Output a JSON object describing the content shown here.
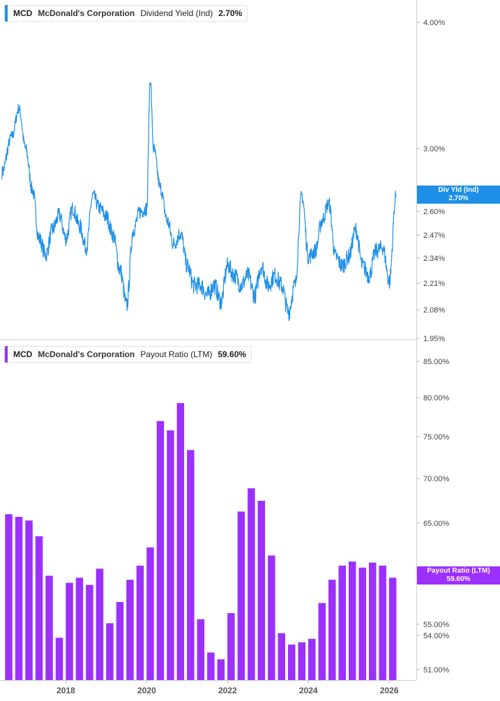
{
  "top_panel": {
    "legend": {
      "ticker": "MCD",
      "company": "McDonald's Corporation",
      "metric": "Dividend Yield (Ind)",
      "value": "2.70%",
      "color": "#1e90e8"
    },
    "tag": {
      "label": "Div Yld (Ind)",
      "value": "2.70%",
      "color": "#1e90e8"
    }
  },
  "bottom_panel": {
    "legend": {
      "ticker": "MCD",
      "company": "McDonald's Corporation",
      "metric": "Payout Ratio (LTM)",
      "value": "59.60%",
      "color": "#9b30ff"
    },
    "tag": {
      "label": "Payout Ratio (LTM)",
      "value": "59.60%",
      "color": "#9b30ff"
    }
  },
  "chart_data": [
    {
      "type": "line",
      "series": [
        {
          "name": "Dividend Yield (Ind)",
          "color": "#1e90e8",
          "x": [
            "2016-07",
            "2016-10",
            "2016-12",
            "2017-02",
            "2017-04",
            "2017-06",
            "2017-08",
            "2017-10",
            "2017-12",
            "2018-02",
            "2018-04",
            "2018-06",
            "2018-08",
            "2018-10",
            "2018-12",
            "2019-02",
            "2019-04",
            "2019-06",
            "2019-08",
            "2019-10",
            "2019-12",
            "2020-02",
            "2020-03",
            "2020-04",
            "2020-06",
            "2020-08",
            "2020-10",
            "2020-12",
            "2021-02",
            "2021-04",
            "2021-06",
            "2021-08",
            "2021-10",
            "2021-12",
            "2022-02",
            "2022-04",
            "2022-06",
            "2022-08",
            "2022-10",
            "2022-12",
            "2023-02",
            "2023-04",
            "2023-06",
            "2023-08",
            "2023-10",
            "2023-12",
            "2024-02",
            "2024-04",
            "2024-06",
            "2024-08",
            "2024-10",
            "2024-12",
            "2025-02",
            "2025-04",
            "2025-06",
            "2025-08",
            "2025-10",
            "2025-12",
            "2026-02",
            "2026-04"
          ],
          "values": [
            2.85,
            3.1,
            3.32,
            3.0,
            2.74,
            2.45,
            2.36,
            2.5,
            2.58,
            2.45,
            2.62,
            2.52,
            2.4,
            2.7,
            2.62,
            2.57,
            2.47,
            2.28,
            2.1,
            2.5,
            2.6,
            2.62,
            3.55,
            3.0,
            2.75,
            2.55,
            2.42,
            2.48,
            2.3,
            2.2,
            2.2,
            2.15,
            2.2,
            2.12,
            2.3,
            2.25,
            2.2,
            2.25,
            2.15,
            2.3,
            2.2,
            2.25,
            2.2,
            2.07,
            2.2,
            2.7,
            2.35,
            2.38,
            2.55,
            2.65,
            2.35,
            2.3,
            2.35,
            2.5,
            2.3,
            2.25,
            2.38,
            2.4,
            2.22,
            2.7
          ]
        }
      ],
      "ylim": [
        1.95,
        4.0
      ],
      "yticks": [
        "4.00%",
        "3.00%",
        "2.60%",
        "2.47%",
        "2.34%",
        "2.21%",
        "2.08%",
        "1.95%"
      ],
      "ytick_values": [
        4.0,
        3.0,
        2.6,
        2.47,
        2.34,
        2.21,
        2.08,
        1.95
      ],
      "grid": false
    },
    {
      "type": "bar",
      "series": [
        {
          "name": "Payout Ratio (LTM)",
          "color": "#9b30ff",
          "x": [
            "2016-09",
            "2016-12",
            "2017-03",
            "2017-06",
            "2017-09",
            "2017-12",
            "2018-03",
            "2018-06",
            "2018-09",
            "2018-12",
            "2019-03",
            "2019-06",
            "2019-09",
            "2019-12",
            "2020-03",
            "2020-06",
            "2020-09",
            "2020-12",
            "2021-03",
            "2021-06",
            "2021-09",
            "2021-12",
            "2022-03",
            "2022-06",
            "2022-09",
            "2022-12",
            "2023-03",
            "2023-06",
            "2023-09",
            "2023-12",
            "2024-03",
            "2024-06",
            "2024-09",
            "2024-12",
            "2025-03",
            "2025-06",
            "2025-09",
            "2025-12",
            "2026-03"
          ],
          "values": [
            66.0,
            65.7,
            65.3,
            63.7,
            59.8,
            53.8,
            59.1,
            59.6,
            58.9,
            60.5,
            55.1,
            57.2,
            59.4,
            60.8,
            62.6,
            77.0,
            75.8,
            79.3,
            73.4,
            55.5,
            52.5,
            51.9,
            56.1,
            66.3,
            68.9,
            67.5,
            61.8,
            54.2,
            53.2,
            53.4,
            53.7,
            57.1,
            59.4,
            60.8,
            61.2,
            60.6,
            61.1,
            60.8,
            59.6
          ]
        }
      ],
      "ylim": [
        50.0,
        86.0
      ],
      "yticks": [
        "85.00%",
        "80.00%",
        "75.00%",
        "70.00%",
        "65.00%",
        "55.00%",
        "54.00%",
        "51.00%"
      ],
      "ytick_values": [
        85,
        80,
        75,
        70,
        65,
        55,
        54,
        51
      ],
      "xticks": [
        "2018",
        "2020",
        "2022",
        "2024",
        "2026"
      ],
      "grid": false
    }
  ]
}
